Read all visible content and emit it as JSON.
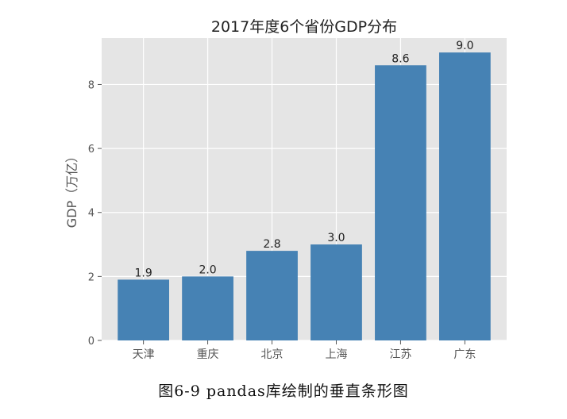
{
  "chart_data": {
    "type": "bar",
    "title": "2017年度6个省份GDP分布",
    "ylabel": "GDP（万亿）",
    "xlabel": "",
    "categories": [
      "天津",
      "重庆",
      "北京",
      "上海",
      "江苏",
      "广东"
    ],
    "values": [
      1.9,
      2.0,
      2.8,
      3.0,
      8.6,
      9.0
    ],
    "data_labels": [
      "1.9",
      "2.0",
      "2.8",
      "3.0",
      "8.6",
      "9.0"
    ],
    "ylim": [
      0,
      9.45
    ],
    "yticks": [
      0,
      2,
      4,
      6,
      8
    ],
    "grid": true,
    "bar_color": "#4682b4",
    "plot_background": "#e5e5e5",
    "grid_color": "#ffffff"
  },
  "caption": "图6-9   pandas库绘制的垂直条形图"
}
